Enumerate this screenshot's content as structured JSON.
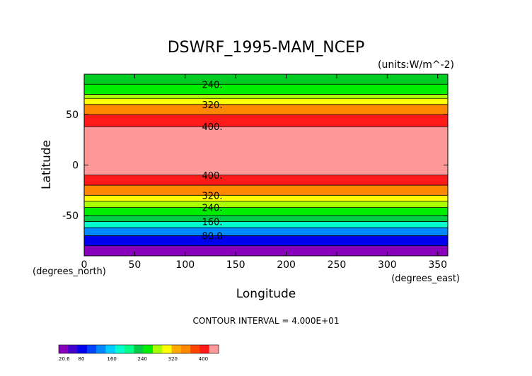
{
  "chart_data": {
    "type": "contour",
    "title": "DSWRF_1995-MAM_NCEP",
    "units": "(units:W/m^-2)",
    "xlabel": "Longitude",
    "ylabel": "Latitude",
    "x_unit_label": "(degrees_east)",
    "y_unit_label": "(degrees_north)",
    "xlim": [
      0,
      360
    ],
    "ylim": [
      -90,
      90
    ],
    "xticks": [
      0,
      50,
      100,
      150,
      200,
      250,
      300,
      350
    ],
    "yticks": [
      -50,
      0,
      50
    ],
    "contour_interval_text": "CONTOUR INTERVAL = 4.000E+01",
    "bands": [
      {
        "lat_min": 80,
        "lat_max": 90,
        "color": "#00cc22"
      },
      {
        "lat_min": 70,
        "lat_max": 80,
        "color": "#00ee00"
      },
      {
        "lat_min": 66,
        "lat_max": 70,
        "color": "#aaff00"
      },
      {
        "lat_min": 60,
        "lat_max": 66,
        "color": "#ffff00"
      },
      {
        "lat_min": 50,
        "lat_max": 60,
        "color": "#ff8800"
      },
      {
        "lat_min": 38,
        "lat_max": 50,
        "color": "#ff1a1a"
      },
      {
        "lat_min": -10,
        "lat_max": 38,
        "color": "#ff9999"
      },
      {
        "lat_min": -20,
        "lat_max": -10,
        "color": "#ff1a1a"
      },
      {
        "lat_min": -30,
        "lat_max": -20,
        "color": "#ff8800"
      },
      {
        "lat_min": -36,
        "lat_max": -30,
        "color": "#ffff00"
      },
      {
        "lat_min": -42,
        "lat_max": -36,
        "color": "#aaff00"
      },
      {
        "lat_min": -50,
        "lat_max": -42,
        "color": "#00ee00"
      },
      {
        "lat_min": -56,
        "lat_max": -50,
        "color": "#00cc44"
      },
      {
        "lat_min": -62,
        "lat_max": -56,
        "color": "#00ffcc"
      },
      {
        "lat_min": -70,
        "lat_max": -62,
        "color": "#0088ff"
      },
      {
        "lat_min": -80,
        "lat_max": -70,
        "color": "#0000ee"
      },
      {
        "lat_min": -90,
        "lat_max": -80,
        "color": "#8800bb"
      }
    ],
    "contour_labels": [
      {
        "text": "240.",
        "lat": 80
      },
      {
        "text": "320.",
        "lat": 60
      },
      {
        "text": "400.",
        "lat": 38
      },
      {
        "text": "400.",
        "lat": -10
      },
      {
        "text": "320.",
        "lat": -30
      },
      {
        "text": "240.",
        "lat": -42
      },
      {
        "text": "160.",
        "lat": -56
      },
      {
        "text": "80.0",
        "lat": -70
      }
    ],
    "colorbar": {
      "colors": [
        "#8800bb",
        "#4400cc",
        "#0000ee",
        "#0044ff",
        "#0088ff",
        "#00ccff",
        "#00ffcc",
        "#00ff88",
        "#00cc44",
        "#00ee00",
        "#aaff00",
        "#ffff00",
        "#ffaa00",
        "#ff8800",
        "#ff4400",
        "#ff1a1a",
        "#ff9999"
      ],
      "tick_labels": [
        "20.6",
        "80",
        "160",
        "240",
        "320",
        "400"
      ],
      "tick_values": [
        20.6,
        80,
        160,
        240,
        320,
        400
      ],
      "range": [
        20.6,
        440
      ]
    }
  }
}
